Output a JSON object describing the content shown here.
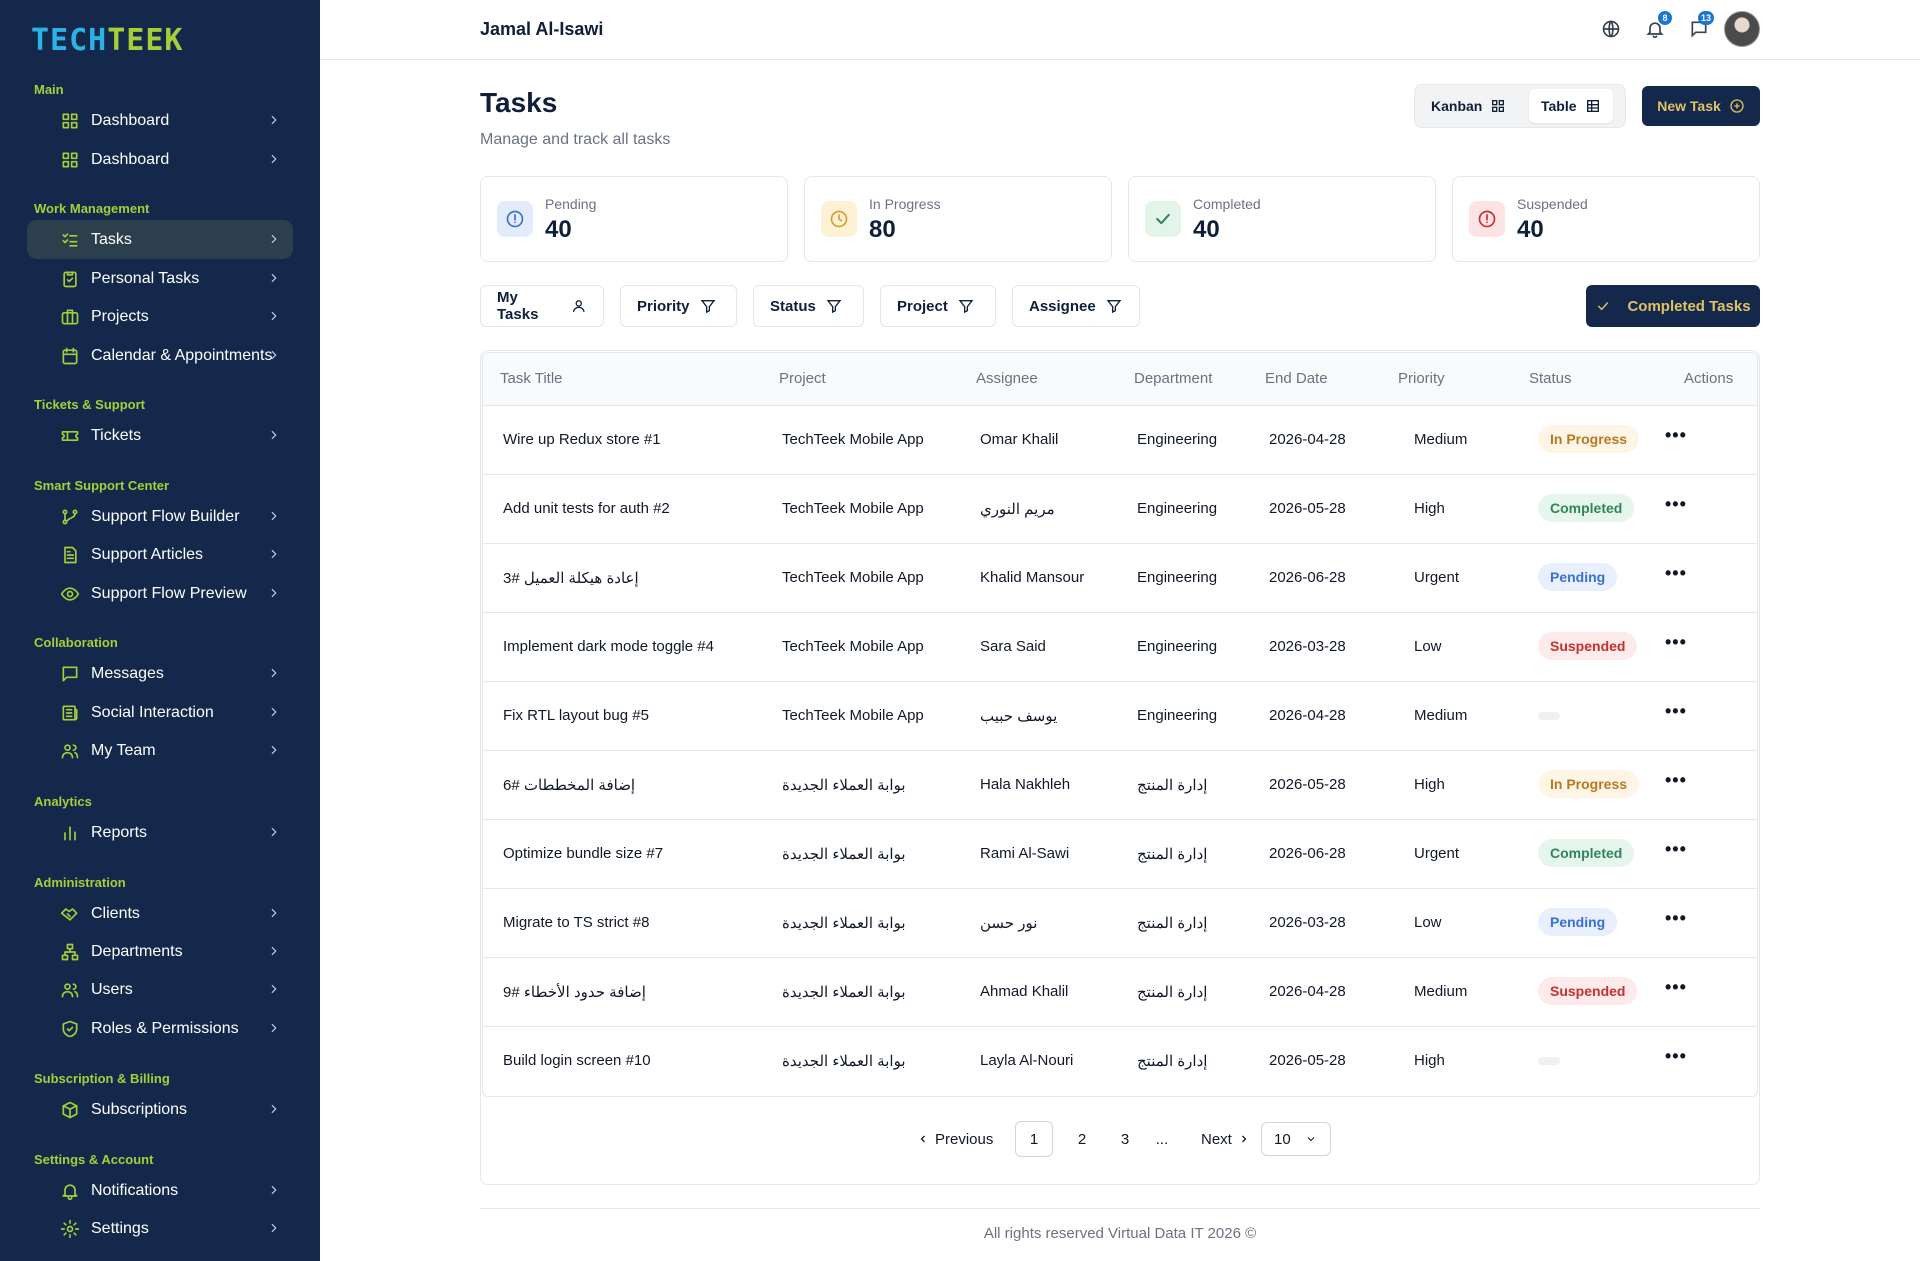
{
  "brand": {
    "part1": "TECH",
    "part2": "TEEK"
  },
  "sidebar": {
    "sections": [
      {
        "label": "Main",
        "items": [
          {
            "label": "Dashboard",
            "icon": "grid-icon"
          },
          {
            "label": "Dashboard",
            "icon": "grid-icon"
          }
        ]
      },
      {
        "label": "Work Management",
        "items": [
          {
            "label": "Tasks",
            "icon": "list-check-icon",
            "active": true
          },
          {
            "label": "Personal Tasks",
            "icon": "clipboard-check-icon"
          },
          {
            "label": "Projects",
            "icon": "briefcase-icon"
          },
          {
            "label": "Calendar & Appointments",
            "icon": "calendar-icon"
          }
        ]
      },
      {
        "label": "Tickets & Support",
        "items": [
          {
            "label": "Tickets",
            "icon": "ticket-icon"
          }
        ]
      },
      {
        "label": "Smart Support Center",
        "items": [
          {
            "label": "Support Flow Builder",
            "icon": "git-branch-icon"
          },
          {
            "label": "Support Articles",
            "icon": "file-text-icon"
          },
          {
            "label": "Support Flow Preview",
            "icon": "eye-icon"
          }
        ]
      },
      {
        "label": "Collaboration",
        "items": [
          {
            "label": "Messages",
            "icon": "message-square-icon"
          },
          {
            "label": "Social Interaction",
            "icon": "newspaper-icon"
          },
          {
            "label": "My Team",
            "icon": "users-icon"
          }
        ]
      },
      {
        "label": "Analytics",
        "items": [
          {
            "label": "Reports",
            "icon": "bar-chart-icon"
          }
        ]
      },
      {
        "label": "Administration",
        "items": [
          {
            "label": "Clients",
            "icon": "handshake-icon"
          },
          {
            "label": "Departments",
            "icon": "network-icon"
          },
          {
            "label": "Users",
            "icon": "users-icon"
          },
          {
            "label": "Roles & Permissions",
            "icon": "shield-check-icon"
          }
        ]
      },
      {
        "label": "Subscription & Billing",
        "items": [
          {
            "label": "Subscriptions",
            "icon": "package-icon"
          }
        ]
      },
      {
        "label": "Settings & Account",
        "items": [
          {
            "label": "Notifications",
            "icon": "bell-icon"
          },
          {
            "label": "Settings",
            "icon": "gear-icon"
          }
        ]
      }
    ]
  },
  "topbar": {
    "user_name": "Jamal Al-Isawi",
    "notifications_count": "8",
    "messages_count": "13"
  },
  "page": {
    "title": "Tasks",
    "subtitle": "Manage and track all tasks"
  },
  "view_toggle": {
    "kanban": "Kanban",
    "table": "Table",
    "active": "Table"
  },
  "new_task_label": "New Task",
  "stats": [
    {
      "label": "Pending",
      "value": "40",
      "color": "#3b6fd4"
    },
    {
      "label": "In Progress",
      "value": "80",
      "color": "#d69e2e"
    },
    {
      "label": "Completed",
      "value": "40",
      "color": "#2f855a"
    },
    {
      "label": "Suspended",
      "value": "40",
      "color": "#c53030"
    }
  ],
  "filters": [
    "My Tasks",
    "Priority",
    "Status",
    "Project",
    "Assignee"
  ],
  "completed_tasks_label": "Completed Tasks",
  "table": {
    "headers": [
      "Task Title",
      "Project",
      "Assignee",
      "Department",
      "End Date",
      "Priority",
      "Status",
      "Actions"
    ],
    "rows": [
      {
        "title": "Wire up Redux store #1",
        "project": "TechTeek Mobile App",
        "assignee": "Omar Khalil",
        "department": "Engineering",
        "end_date": "2026-04-28",
        "priority": "Medium",
        "status": "In Progress"
      },
      {
        "title": "Add unit tests for auth #2",
        "project": "TechTeek Mobile App",
        "assignee": "مريم النوري",
        "department": "Engineering",
        "end_date": "2026-05-28",
        "priority": "High",
        "status": "Completed"
      },
      {
        "title": "إعادة هيكلة العميل #3",
        "project": "TechTeek Mobile App",
        "assignee": "Khalid Mansour",
        "department": "Engineering",
        "end_date": "2026-06-28",
        "priority": "Urgent",
        "status": "Pending"
      },
      {
        "title": "Implement dark mode toggle #4",
        "project": "TechTeek Mobile App",
        "assignee": "Sara Said",
        "department": "Engineering",
        "end_date": "2026-03-28",
        "priority": "Low",
        "status": "Suspended"
      },
      {
        "title": "Fix RTL layout bug #5",
        "project": "TechTeek Mobile App",
        "assignee": "يوسف حبيب",
        "department": "Engineering",
        "end_date": "2026-04-28",
        "priority": "Medium",
        "status": ""
      },
      {
        "title": "إضافة المخططات #6",
        "project": "بوابة العملاء الجديدة",
        "assignee": "Hala Nakhleh",
        "department": "إدارة المنتج",
        "end_date": "2026-05-28",
        "priority": "High",
        "status": "In Progress"
      },
      {
        "title": "Optimize bundle size #7",
        "project": "بوابة العملاء الجديدة",
        "assignee": "Rami Al-Sawi",
        "department": "إدارة المنتج",
        "end_date": "2026-06-28",
        "priority": "Urgent",
        "status": "Completed"
      },
      {
        "title": "Migrate to TS strict #8",
        "project": "بوابة العملاء الجديدة",
        "assignee": "نور حسن",
        "department": "إدارة المنتج",
        "end_date": "2026-03-28",
        "priority": "Low",
        "status": "Pending"
      },
      {
        "title": "إضافة حدود الأخطاء #9",
        "project": "بوابة العملاء الجديدة",
        "assignee": "Ahmad Khalil",
        "department": "إدارة المنتج",
        "end_date": "2026-04-28",
        "priority": "Medium",
        "status": "Suspended"
      },
      {
        "title": "Build login screen #10",
        "project": "بوابة العملاء الجديدة",
        "assignee": "Layla Al-Nouri",
        "department": "إدارة المنتج",
        "end_date": "2026-05-28",
        "priority": "High",
        "status": ""
      }
    ]
  },
  "pagination": {
    "previous": "Previous",
    "pages": [
      "1",
      "2",
      "3"
    ],
    "ellipsis": "...",
    "next": "Next",
    "page_size": "10",
    "current": "1"
  },
  "footer": "All rights reserved Virtual Data IT 2026 ©"
}
